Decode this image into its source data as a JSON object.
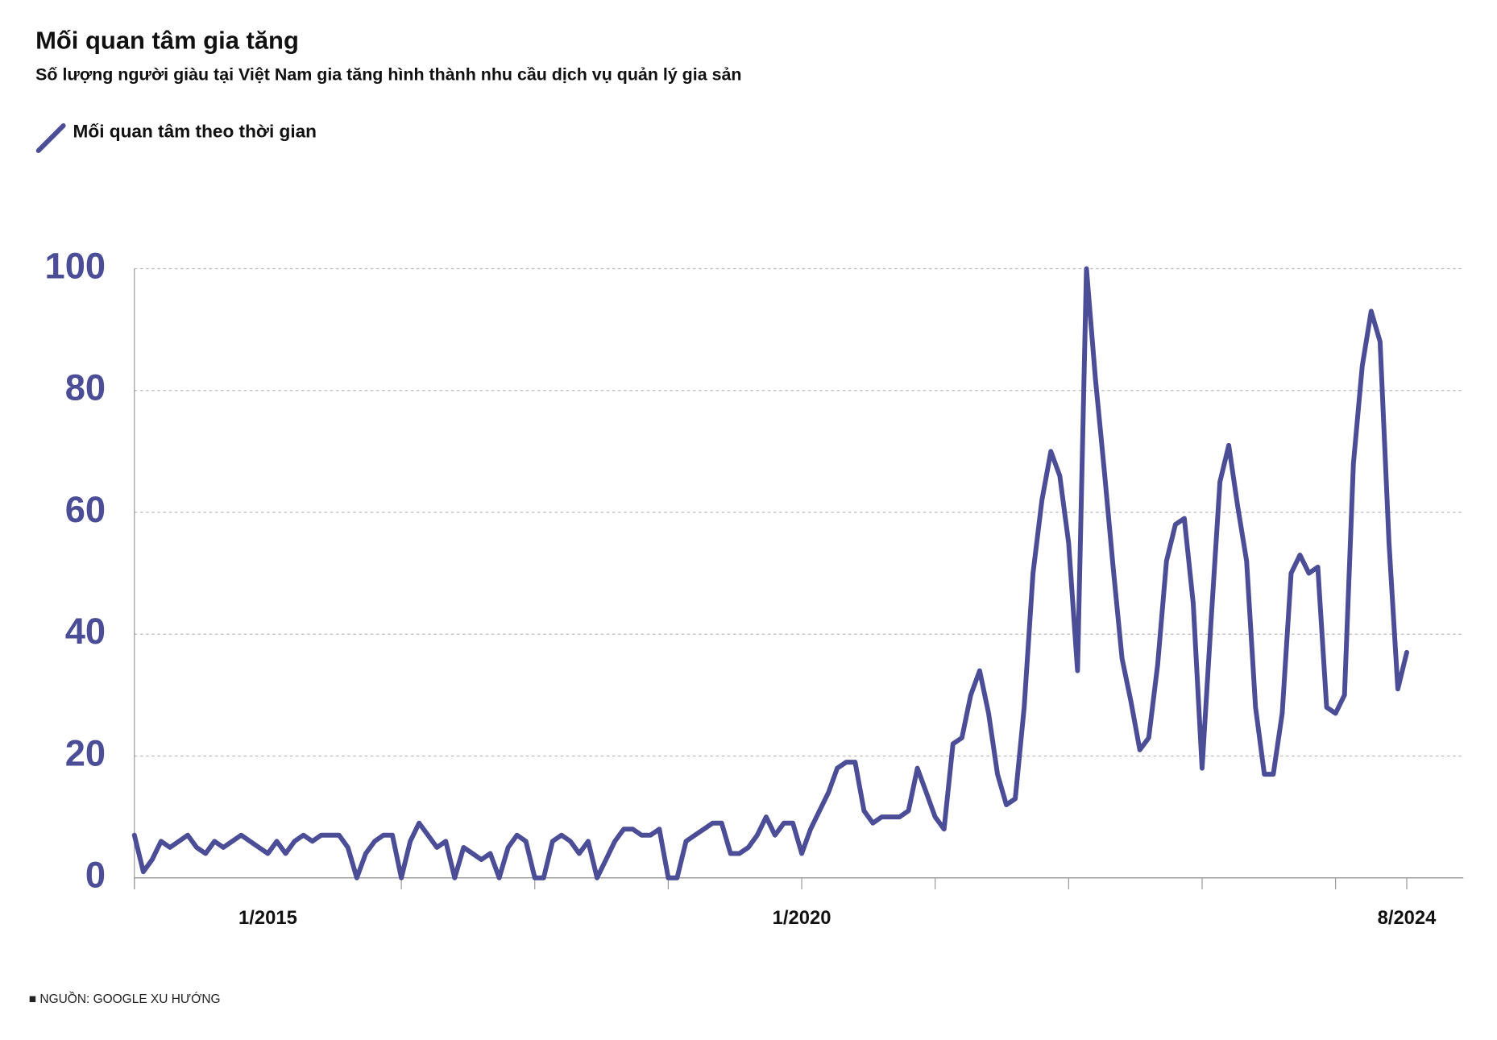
{
  "chart_data": {
    "type": "line",
    "title": "Mối quan tâm gia tăng",
    "subtitle": "Số lượng người giàu tại Việt Nam gia tăng hình thành nhu cầu dịch vụ quản lý gia sản",
    "source": "■ NGUỒN: GOOGLE XU HƯỚNG",
    "categories": [
      null,
      null,
      null,
      null,
      null,
      null,
      null,
      null,
      null,
      null,
      null,
      null,
      null,
      null,
      null,
      "1/2015",
      null,
      null,
      null,
      null,
      null,
      null,
      null,
      null,
      null,
      null,
      null,
      null,
      null,
      null,
      null,
      null,
      null,
      null,
      null,
      null,
      null,
      null,
      null,
      null,
      null,
      null,
      null,
      null,
      null,
      null,
      null,
      null,
      null,
      null,
      null,
      null,
      null,
      null,
      null,
      null,
      null,
      null,
      null,
      null,
      null,
      null,
      null,
      null,
      null,
      null,
      null,
      null,
      null,
      null,
      null,
      null,
      null,
      null,
      null,
      "1/2020",
      null,
      null,
      null,
      null,
      null,
      null,
      null,
      null,
      null,
      null,
      null,
      null,
      null,
      null,
      null,
      null,
      null,
      null,
      null,
      null,
      null,
      null,
      null,
      null,
      null,
      null,
      null,
      null,
      null,
      null,
      null,
      null,
      null,
      null,
      null,
      null,
      null,
      null,
      null,
      null,
      null,
      null,
      null,
      null,
      null,
      null,
      null,
      null,
      null,
      null,
      null,
      null,
      null,
      null,
      null,
      null,
      null,
      null,
      null,
      null,
      null,
      null,
      null,
      null,
      null,
      null,
      null,
      "8/2024"
    ],
    "series": [
      {
        "name": "Mối quan tâm theo thời gian",
        "color": "#4b4d96",
        "values": [
          7,
          1,
          3,
          6,
          5,
          6,
          7,
          5,
          4,
          6,
          5,
          6,
          7,
          6,
          5,
          4,
          6,
          4,
          6,
          7,
          6,
          7,
          7,
          7,
          5,
          0,
          4,
          6,
          7,
          7,
          0,
          6,
          9,
          7,
          5,
          6,
          0,
          5,
          4,
          3,
          4,
          0,
          5,
          7,
          6,
          0,
          0,
          6,
          7,
          6,
          4,
          6,
          0,
          3,
          6,
          8,
          8,
          7,
          7,
          8,
          0,
          0,
          6,
          7,
          8,
          9,
          9,
          4,
          4,
          5,
          7,
          10,
          7,
          9,
          9,
          4,
          8,
          11,
          14,
          18,
          19,
          19,
          11,
          9,
          10,
          10,
          10,
          11,
          18,
          14,
          10,
          8,
          22,
          23,
          30,
          34,
          27,
          17,
          12,
          13,
          28,
          50,
          62,
          70,
          66,
          55,
          34,
          100,
          82,
          67,
          51,
          36,
          29,
          21,
          23,
          35,
          52,
          58,
          59,
          45,
          18,
          42,
          65,
          71,
          61,
          52,
          28,
          17,
          17,
          27,
          50,
          53,
          50,
          51,
          28,
          27,
          30,
          68,
          84,
          93,
          88,
          55,
          31,
          37
        ]
      }
    ],
    "ylim": [
      0,
      100
    ],
    "yticks": [
      0,
      20,
      40,
      60,
      80,
      100
    ],
    "grid": true
  }
}
